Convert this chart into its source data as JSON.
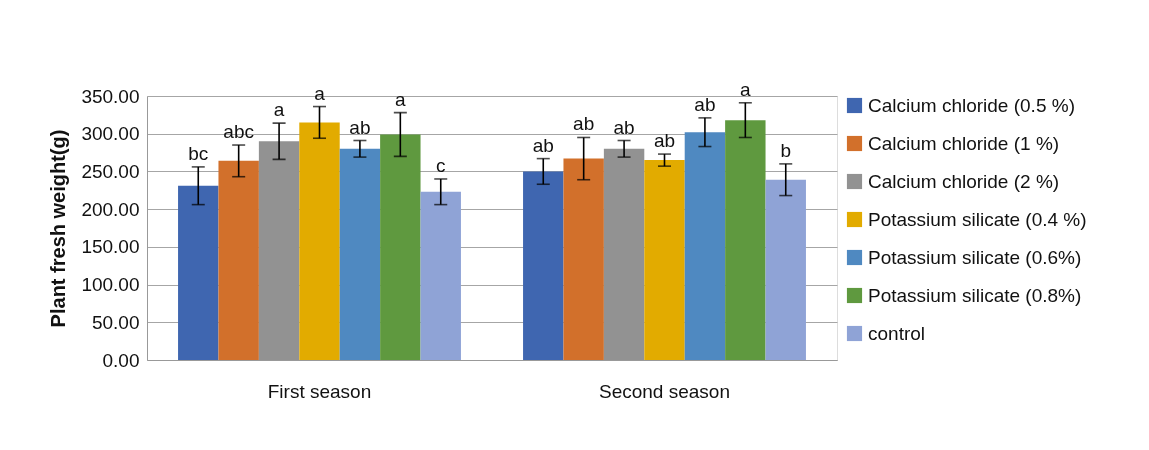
{
  "chart_data": {
    "type": "bar",
    "ylabel": "Plant fresh weight(g)",
    "categories": [
      "First season",
      "Second season"
    ],
    "ylim": [
      0,
      350
    ],
    "yticks": [
      {
        "value": 0,
        "label": "0.00"
      },
      {
        "value": 50,
        "label": "50.00"
      },
      {
        "value": 100,
        "label": "100.00"
      },
      {
        "value": 150,
        "label": "150.00"
      },
      {
        "value": 200,
        "label": "200.00"
      },
      {
        "value": 250,
        "label": "250.00"
      },
      {
        "value": 300,
        "label": "300.00"
      },
      {
        "value": 350,
        "label": "350.00"
      }
    ],
    "grid": "y",
    "legend": "right",
    "series": [
      {
        "name": "Calcium chloride (0.5 %)",
        "color": "#3f66b0",
        "values": [
          231,
          250
        ],
        "errors": [
          25,
          17
        ],
        "value_labels": [
          "bc",
          "ab"
        ]
      },
      {
        "name": "Calcium chloride (1 %)",
        "color": "#d2702b",
        "values": [
          264,
          267
        ],
        "errors": [
          21,
          28
        ],
        "value_labels": [
          "abc",
          "ab"
        ]
      },
      {
        "name": "Calcium chloride (2 %)",
        "color": "#929292",
        "values": [
          290,
          280
        ],
        "errors": [
          24,
          11
        ],
        "value_labels": [
          "a",
          "ab"
        ]
      },
      {
        "name": "Potassium silicate (0.4 %)",
        "color": "#e2ab00",
        "values": [
          315,
          265
        ],
        "errors": [
          21,
          8
        ],
        "value_labels": [
          "a",
          "ab"
        ]
      },
      {
        "name": "Potassium silicate  (0.6%)",
        "color": "#4f89c1",
        "values": [
          280,
          302
        ],
        "errors": [
          11,
          19
        ],
        "value_labels": [
          "ab",
          "ab"
        ]
      },
      {
        "name": "Potassium silicate  (0.8%)",
        "color": "#5f993f",
        "values": [
          299,
          318
        ],
        "errors": [
          29,
          23
        ],
        "value_labels": [
          "a",
          "a"
        ]
      },
      {
        "name": "control",
        "color": "#8fa3d6",
        "values": [
          223,
          239
        ],
        "errors": [
          17,
          21
        ],
        "value_labels": [
          "c",
          "b"
        ]
      }
    ]
  }
}
